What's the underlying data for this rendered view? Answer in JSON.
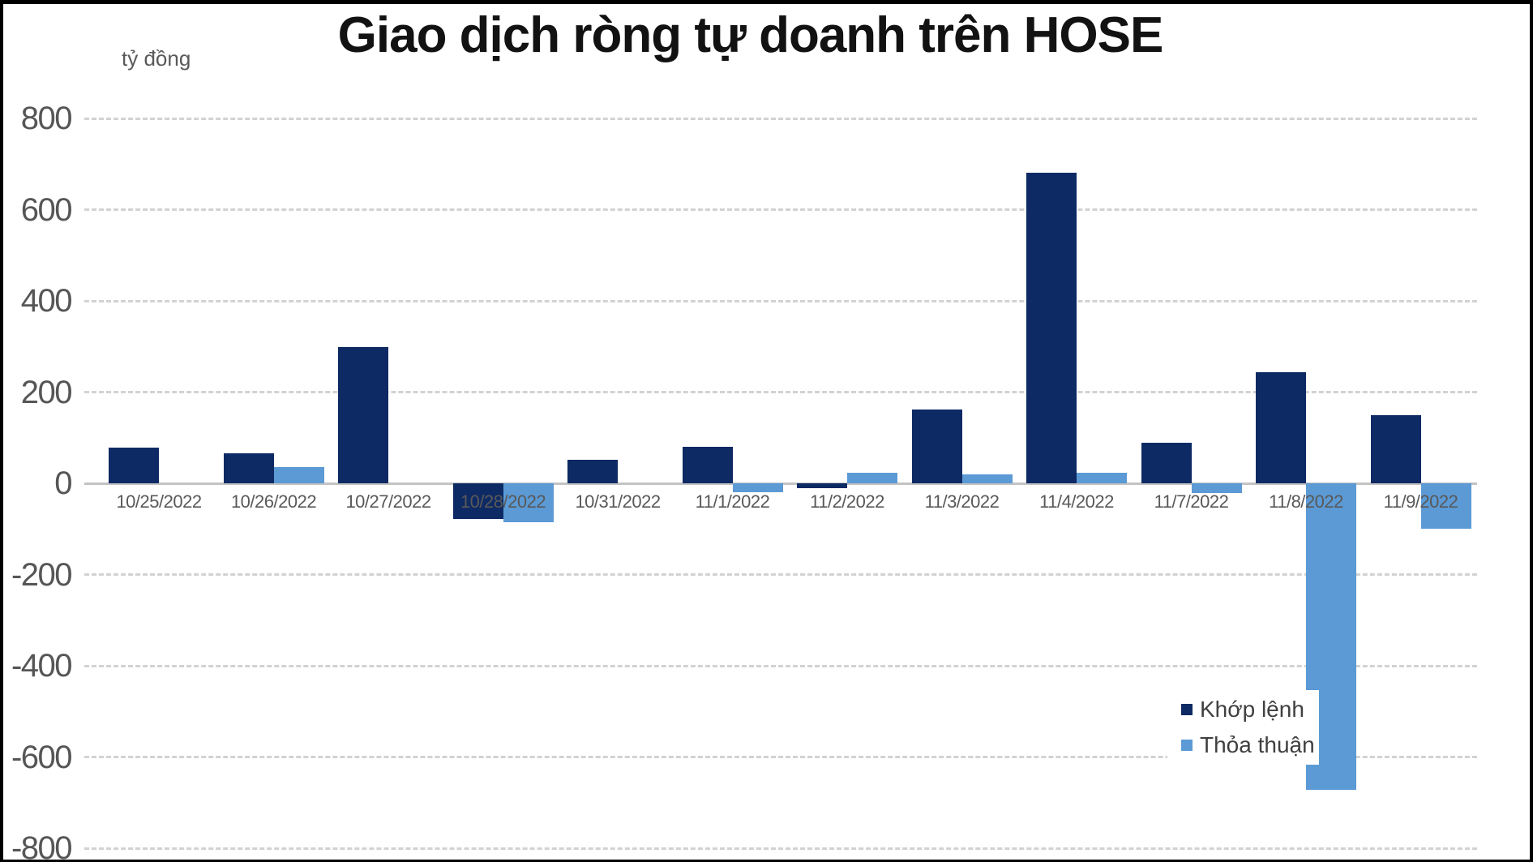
{
  "frame": {
    "background_color": "#ffffff",
    "border_color": "#000000"
  },
  "chart": {
    "title": "Giao dịch ròng tự doanh trên HOSE",
    "unit_label": "tỷ đồng",
    "legend": [
      {
        "label": "Khớp lệnh",
        "color": "#0e2a64"
      },
      {
        "label": "Thỏa thuận",
        "color": "#5b9ad5"
      }
    ]
  },
  "chart_data": {
    "type": "bar",
    "title": "Giao dịch ròng tự doanh trên HOSE",
    "unit": "tỷ đồng",
    "categories": [
      "10/25/2022",
      "10/26/2022",
      "10/27/2022",
      "10/28/2022",
      "10/31/2022",
      "11/1/2022",
      "11/2/2022",
      "11/3/2022",
      "11/4/2022",
      "11/7/2022",
      "11/8/2022",
      "11/9/2022"
    ],
    "series": [
      {
        "name": "Khớp lệnh",
        "color": "#0e2a64",
        "values": [
          78,
          65,
          298,
          -78,
          51,
          80,
          -10,
          161,
          681,
          89,
          244,
          150
        ]
      },
      {
        "name": "Thỏa thuận",
        "color": "#5b9ad5",
        "values": [
          0,
          36,
          0,
          -85,
          0,
          -20,
          23,
          19,
          24,
          -21,
          -672,
          -100
        ]
      }
    ],
    "ylim": [
      -800,
      800
    ],
    "ytick_step": 200,
    "grid": "horizontal dashed gridlines, solid zero axis line",
    "legend_position": "inside lower-right, white background overlapping bars",
    "bar_color_positive_negative_same": true
  }
}
